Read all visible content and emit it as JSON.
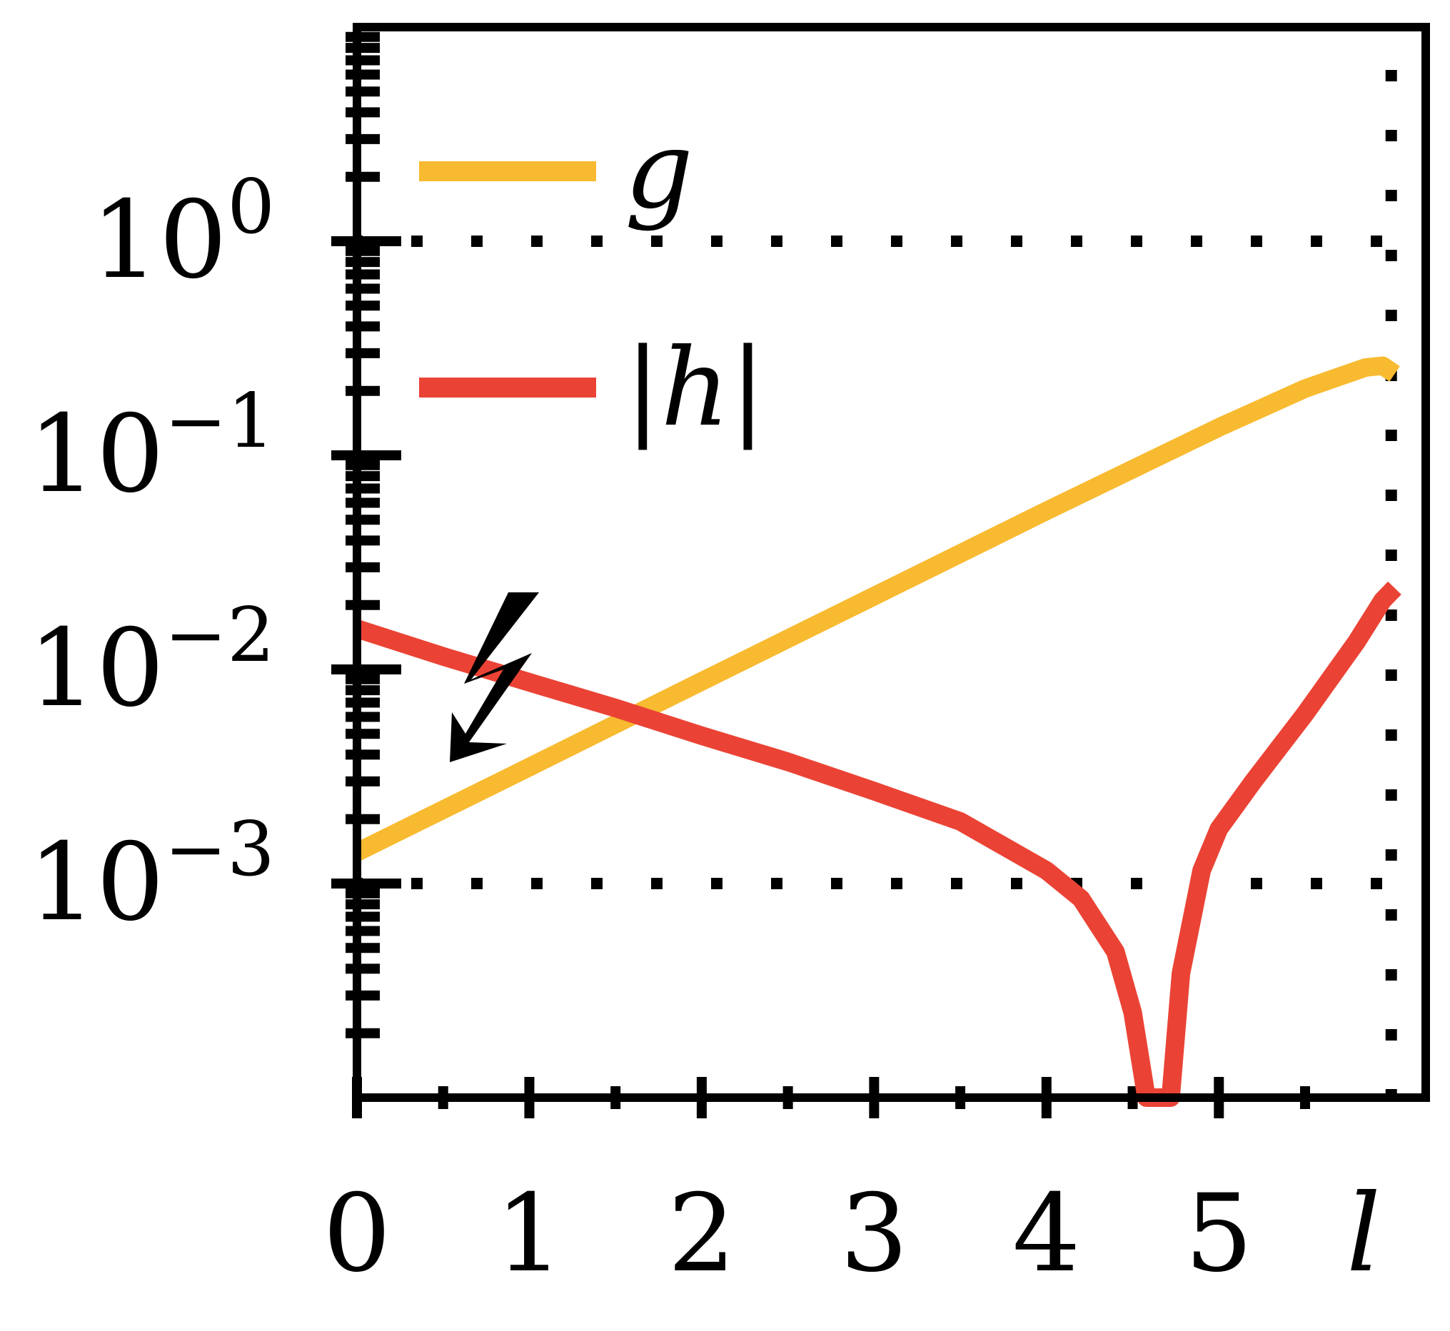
{
  "chart_data": {
    "type": "line",
    "title": "",
    "xlabel": "l",
    "ylabel": "",
    "xlim": [
      0,
      6.2
    ],
    "ylim": [
      0.0001,
      10
    ],
    "y_scale": "log",
    "x_ticks": [
      0,
      1,
      2,
      3,
      4,
      5
    ],
    "x_tick_labels": [
      "0",
      "1",
      "2",
      "3",
      "4",
      "5"
    ],
    "y_ticks": [
      0.001,
      0.01,
      0.1,
      1
    ],
    "y_tick_labels": [
      {
        "base": "10",
        "exp": "−3"
      },
      {
        "base": "10",
        "exp": "−2"
      },
      {
        "base": "10",
        "exp": "−1"
      },
      {
        "base": "10",
        "exp": "0"
      }
    ],
    "reference_lines": {
      "horizontal": [
        0.001,
        1
      ],
      "vertical": [
        6.0
      ]
    },
    "legend": {
      "position": "top-left"
    },
    "series": [
      {
        "name": "g",
        "color": "#F8BA30",
        "x": [
          0,
          1,
          2,
          3,
          4,
          5,
          5.5,
          5.85,
          5.95,
          6.02
        ],
        "y": [
          0.0014,
          0.0035,
          0.0088,
          0.022,
          0.055,
          0.135,
          0.205,
          0.257,
          0.262,
          0.24
        ]
      },
      {
        "name": "|h|",
        "color": "#EA4335",
        "x": [
          0,
          0.5,
          1,
          1.5,
          2,
          2.5,
          3,
          3.5,
          4,
          4.2,
          4.4,
          4.5,
          4.58,
          4.64,
          4.68,
          4.72,
          4.78,
          4.9,
          5.0,
          5.2,
          5.5,
          5.8,
          5.95,
          6.02
        ],
        "y": [
          0.0155,
          0.0115,
          0.0087,
          0.0066,
          0.0049,
          0.0037,
          0.0027,
          0.00195,
          0.00115,
          0.00085,
          0.00048,
          0.00025,
          0.0001,
          0.0001,
          0.0001,
          0.0001,
          0.00038,
          0.00115,
          0.0018,
          0.003,
          0.0062,
          0.0135,
          0.021,
          0.024
        ]
      }
    ],
    "annotations": [
      {
        "type": "lightning-arrow-icon",
        "direction": "down-left"
      }
    ]
  }
}
